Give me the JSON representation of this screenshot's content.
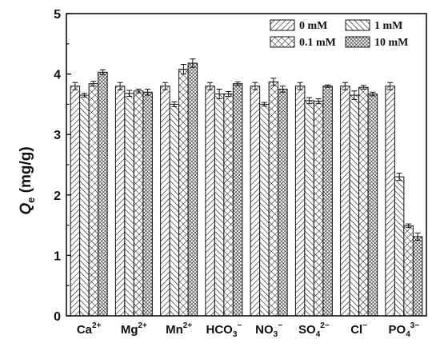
{
  "chart_data": {
    "type": "bar",
    "ylabel": "Q_e (mg/g)",
    "ylabel_main": "Q",
    "ylabel_sub": "e",
    "ylabel_unit": " (mg/g)",
    "ylim": [
      0,
      5
    ],
    "yticks": [
      "0",
      "1",
      "2",
      "3",
      "4",
      "5"
    ],
    "grid": false,
    "legend_position": "top-right",
    "categories": [
      {
        "base": "Ca",
        "sub": "",
        "sup": "2+"
      },
      {
        "base": "Mg",
        "sub": "",
        "sup": "2+"
      },
      {
        "base": "Mn",
        "sub": "",
        "sup": "2+"
      },
      {
        "base": "HCO",
        "sub": "3",
        "sup": "−"
      },
      {
        "base": "NO",
        "sub": "3",
        "sup": "−"
      },
      {
        "base": "SO",
        "sub": "4",
        "sup": "2−"
      },
      {
        "base": "Cl",
        "sub": "",
        "sup": "−"
      },
      {
        "base": "PO",
        "sub": "4",
        "sup": "3−"
      }
    ],
    "series": [
      {
        "name": "0 mM",
        "pattern": "diag-right",
        "values": [
          3.8,
          3.8,
          3.8,
          3.8,
          3.8,
          3.8,
          3.8,
          3.8
        ],
        "errors": [
          0.06,
          0.06,
          0.06,
          0.06,
          0.06,
          0.06,
          0.06,
          0.06
        ]
      },
      {
        "name": "1 mM",
        "pattern": "diag-left",
        "values": [
          3.65,
          3.68,
          3.5,
          3.67,
          3.5,
          3.56,
          3.65,
          2.3
        ],
        "errors": [
          0.03,
          0.05,
          0.04,
          0.08,
          0.03,
          0.05,
          0.07,
          0.06
        ]
      },
      {
        "name": "0.1 mM",
        "pattern": "cross",
        "values": [
          3.84,
          3.72,
          4.08,
          3.67,
          3.87,
          3.55,
          3.78,
          1.49
        ],
        "errors": [
          0.04,
          0.03,
          0.08,
          0.04,
          0.06,
          0.04,
          0.03,
          0.03
        ]
      },
      {
        "name": "10 mM",
        "pattern": "dense-cross",
        "values": [
          4.03,
          3.7,
          4.18,
          3.84,
          3.75,
          3.8,
          3.67,
          1.31
        ],
        "errors": [
          0.04,
          0.05,
          0.07,
          0.03,
          0.05,
          0.02,
          0.03,
          0.06
        ]
      }
    ]
  }
}
